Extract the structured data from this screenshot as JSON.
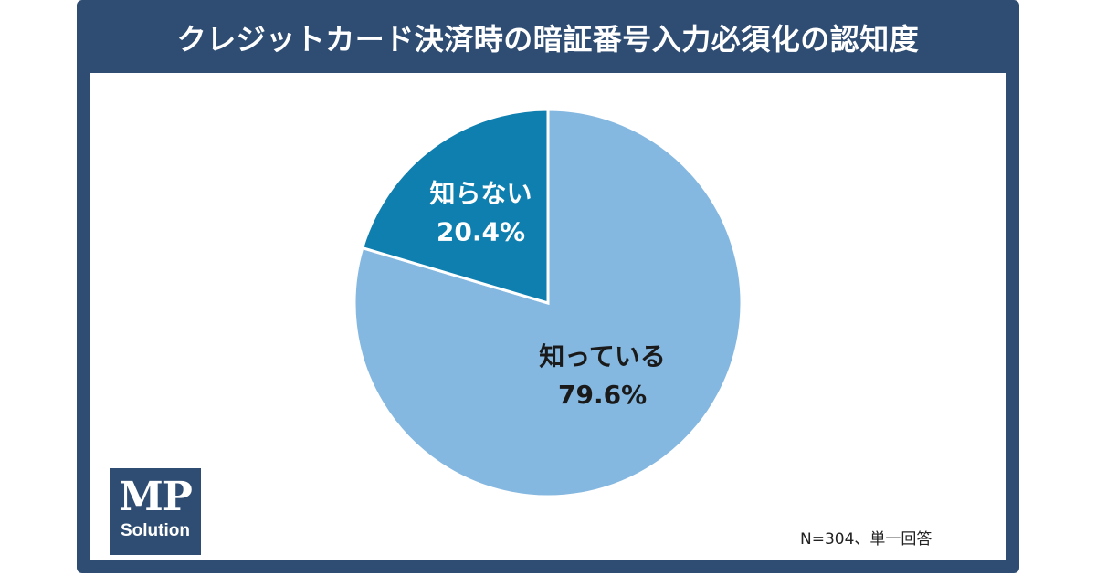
{
  "chart_data": {
    "type": "pie",
    "title": "クレジットカード決済時の暗証番号入力必須化の認知度",
    "slices": [
      {
        "label": "知っている",
        "value": 79.6,
        "value_text": "79.6%",
        "color": "#85b8e0",
        "text_color": "#1a1a1a"
      },
      {
        "label": "知らない",
        "value": 20.4,
        "value_text": "20.4%",
        "color": "#0e7faf",
        "text_color": "#ffffff"
      }
    ],
    "start": "12 o'clock",
    "direction": "clockwise",
    "legend": "none"
  },
  "note": "N=304、単一回答",
  "logo": {
    "main": "MP",
    "sub": "Solution"
  },
  "colors": {
    "frame": "#2f4d72",
    "panel": "#ffffff",
    "divider": "#ffffff"
  }
}
